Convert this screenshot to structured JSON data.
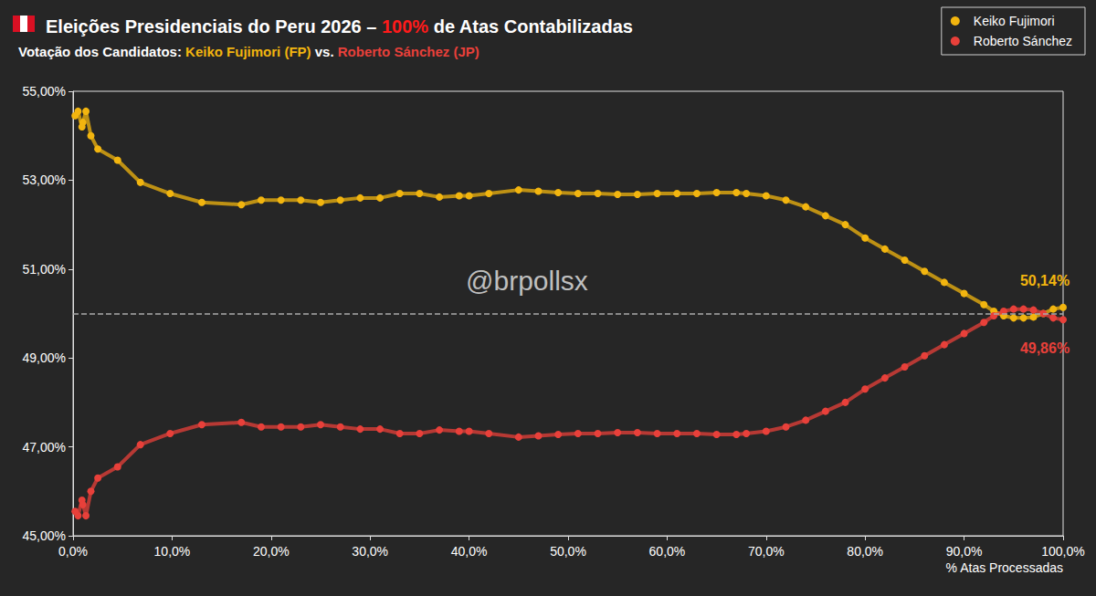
{
  "chart_data": {
    "type": "line",
    "title": "Eleições Presidenciais do Peru 2026 – 100% de Atas Contabilizadas",
    "subtitle": "Votação dos Candidatos: Keiko Fujimori (FP) vs. Roberto Sánchez (JP)",
    "watermark": "@brpollsx",
    "x_label": "% Atas Processadas",
    "x": [
      0.2,
      0.5,
      0.9,
      1.0,
      1.3,
      1.8,
      2.5,
      4.5,
      6.8,
      9.8,
      13,
      17,
      19,
      21,
      23,
      25,
      27,
      29,
      31,
      33,
      35,
      37,
      39,
      40,
      42,
      45,
      47,
      49,
      51,
      53,
      55,
      57,
      59,
      61,
      63,
      65,
      67,
      68,
      70,
      72,
      74,
      76,
      78,
      80,
      82,
      84,
      86,
      88,
      90,
      92,
      93,
      94,
      95,
      96,
      97,
      98,
      99,
      100
    ],
    "series": [
      {
        "name": "Keiko Fujimori",
        "color": "#f2b50f",
        "marker": "circle",
        "values": [
          54.45,
          54.55,
          54.2,
          54.3,
          54.55,
          54.0,
          53.7,
          53.45,
          52.95,
          52.7,
          52.5,
          52.45,
          52.55,
          52.55,
          52.55,
          52.5,
          52.55,
          52.6,
          52.6,
          52.7,
          52.7,
          52.62,
          52.65,
          52.65,
          52.7,
          52.78,
          52.75,
          52.72,
          52.7,
          52.7,
          52.68,
          52.68,
          52.7,
          52.7,
          52.7,
          52.72,
          52.72,
          52.7,
          52.65,
          52.55,
          52.4,
          52.2,
          52.0,
          51.7,
          51.45,
          51.2,
          50.95,
          50.7,
          50.45,
          50.2,
          50.05,
          49.95,
          49.9,
          49.9,
          49.92,
          50.0,
          50.1,
          50.14
        ],
        "value_labels": [
          null,
          null,
          null,
          null,
          null,
          null,
          null,
          null,
          null,
          null,
          null,
          null,
          null,
          null,
          null,
          null,
          null,
          null,
          null,
          null,
          null,
          null,
          null,
          null,
          null,
          null,
          null,
          null,
          null,
          null,
          null,
          null,
          null,
          null,
          null,
          null,
          null,
          null,
          null,
          null,
          null,
          null,
          null,
          null,
          null,
          null,
          null,
          null,
          null,
          null,
          null,
          null,
          null,
          null,
          null,
          null,
          null,
          "50,14%"
        ]
      },
      {
        "name": "Roberto Sánchez",
        "color": "#e8403a",
        "marker": "circle",
        "values": [
          45.55,
          45.45,
          45.8,
          45.7,
          45.45,
          46.0,
          46.3,
          46.55,
          47.05,
          47.3,
          47.5,
          47.55,
          47.45,
          47.45,
          47.45,
          47.5,
          47.45,
          47.4,
          47.4,
          47.3,
          47.3,
          47.38,
          47.35,
          47.35,
          47.3,
          47.22,
          47.25,
          47.28,
          47.3,
          47.3,
          47.32,
          47.32,
          47.3,
          47.3,
          47.3,
          47.28,
          47.28,
          47.3,
          47.35,
          47.45,
          47.6,
          47.8,
          48.0,
          48.3,
          48.55,
          48.8,
          49.05,
          49.3,
          49.55,
          49.8,
          49.95,
          50.05,
          50.1,
          50.1,
          50.08,
          50.0,
          49.9,
          49.86
        ],
        "value_labels": [
          null,
          null,
          null,
          null,
          null,
          null,
          null,
          null,
          null,
          null,
          null,
          null,
          null,
          null,
          null,
          null,
          null,
          null,
          null,
          null,
          null,
          null,
          null,
          null,
          null,
          null,
          null,
          null,
          null,
          null,
          null,
          null,
          null,
          null,
          null,
          null,
          null,
          null,
          null,
          null,
          null,
          null,
          null,
          null,
          null,
          null,
          null,
          null,
          null,
          null,
          null,
          null,
          null,
          null,
          null,
          null,
          null,
          "49,86%"
        ]
      }
    ],
    "reference_line": 50,
    "xlim": [
      0,
      100
    ],
    "xticks": [
      {
        "value": 0,
        "label": "0,0%"
      },
      {
        "value": 10,
        "label": "10,0%"
      },
      {
        "value": 20,
        "label": "20,0%"
      },
      {
        "value": 30,
        "label": "30,0%"
      },
      {
        "value": 40,
        "label": "40,0%"
      },
      {
        "value": 50,
        "label": "50,0%"
      },
      {
        "value": 60,
        "label": "60,0%"
      },
      {
        "value": 70,
        "label": "70,0%"
      },
      {
        "value": 80,
        "label": "80,0%"
      },
      {
        "value": 90,
        "label": "90,0%"
      },
      {
        "value": 100,
        "label": "100,0%"
      }
    ],
    "ylim": [
      45,
      55
    ],
    "yticks": [
      {
        "value": 45,
        "label": "45,00%"
      },
      {
        "value": 47,
        "label": "47,00%"
      },
      {
        "value": 49,
        "label": "49,00%"
      },
      {
        "value": 51,
        "label": "51,00%"
      },
      {
        "value": 53,
        "label": "53,00%"
      },
      {
        "value": 55,
        "label": "55,00%"
      }
    ],
    "grid": false,
    "legend": "top-right",
    "data_labels": true
  }
}
